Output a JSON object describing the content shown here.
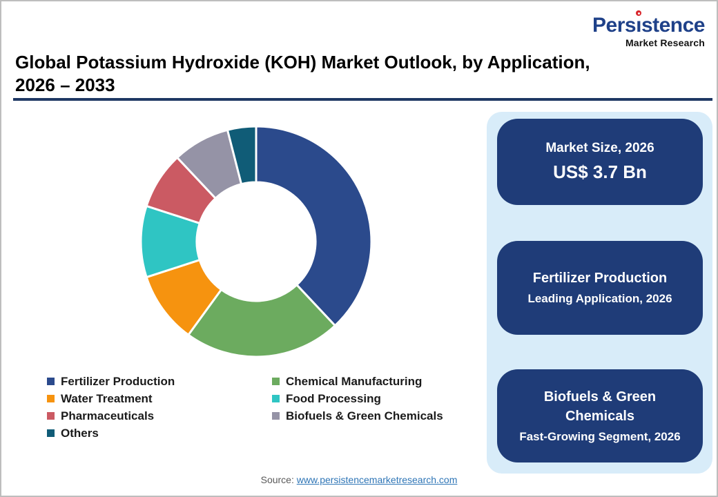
{
  "logo": {
    "name": "Persistence",
    "name_parts": {
      "pre": "Pers",
      "i_char": "ı",
      "post": "stence"
    },
    "subtitle": "Market Research",
    "name_color": "#1f4189",
    "dot_color": "#d8262c"
  },
  "header": {
    "title_line1": "Global Potassium Hydroxide (KOH) Market Outlook, by Application,",
    "title_line2": "2026 – 2033",
    "rule_color": "#1f3864"
  },
  "chart_data": {
    "type": "pie",
    "donut": true,
    "inner_radius_ratio": 0.51,
    "start_angle": "top",
    "direction": "clockwise",
    "title": "Global Potassium Hydroxide (KOH) Market Outlook, by Application, 2026 – 2033",
    "units": "% share of market, 2026 (estimated from arc angles; no data labels shown)",
    "legend_position": "bottom",
    "segments": [
      {
        "label": "Fertilizer Production",
        "value": 38,
        "color": "#2b4a8c"
      },
      {
        "label": "Chemical Manufacturing",
        "value": 22,
        "color": "#6cab5f"
      },
      {
        "label": "Water Treatment",
        "value": 10,
        "color": "#f6930f"
      },
      {
        "label": "Food Processing",
        "value": 10,
        "color": "#2fc5c3"
      },
      {
        "label": "Pharmaceuticals",
        "value": 8,
        "color": "#cb5a63"
      },
      {
        "label": "Biofuels & Green Chemicals",
        "value": 8,
        "color": "#9593a6"
      },
      {
        "label": "Others",
        "value": 4,
        "color": "#105c77"
      }
    ]
  },
  "panel": {
    "background": "#d8ecf9",
    "card_color": "#1f3c78",
    "cards": [
      {
        "line1": "Market Size, 2026",
        "line2": "US$ 3.7 Bn"
      },
      {
        "line1": "Fertilizer Production",
        "line2": "Leading Application, 2026"
      },
      {
        "line1": "Biofuels & Green Chemicals",
        "line2": "Fast-Growing Segment, 2026"
      }
    ]
  },
  "footer": {
    "source_label": "Source:",
    "source_link": "www.persistencemarketresearch.com",
    "link_color": "#2e75b6"
  }
}
